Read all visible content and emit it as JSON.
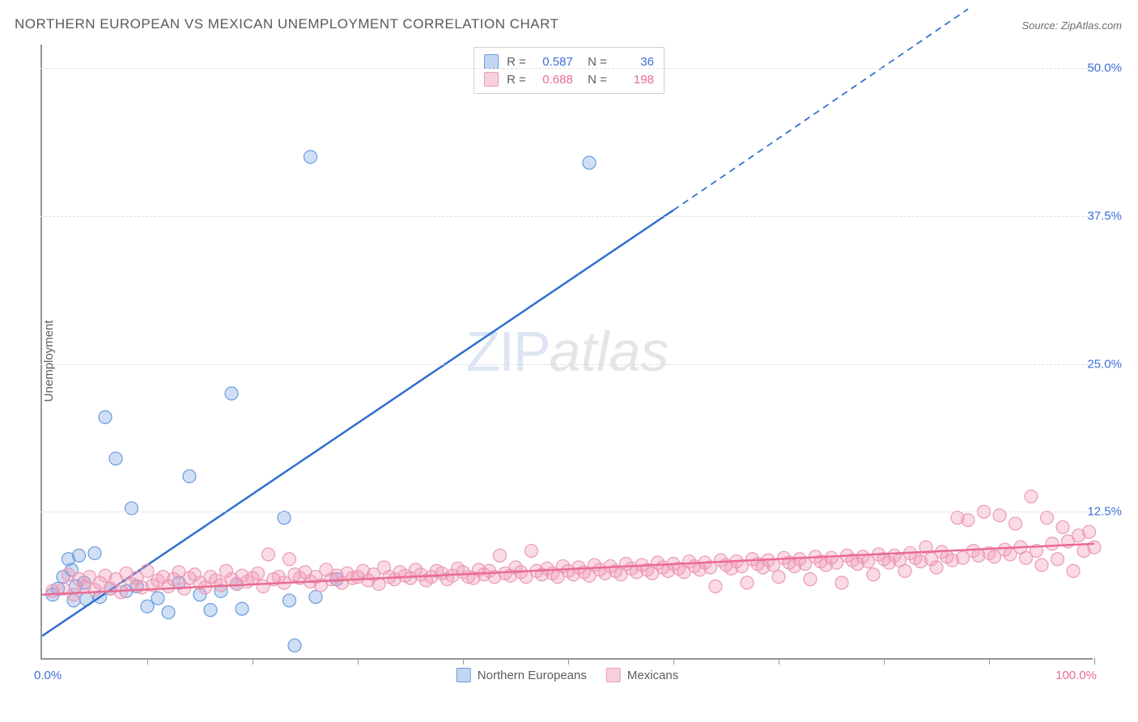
{
  "title": "NORTHERN EUROPEAN VS MEXICAN UNEMPLOYMENT CORRELATION CHART",
  "source_label": "Source: ZipAtlas.com",
  "ylabel": "Unemployment",
  "watermark_zip": "ZIP",
  "watermark_atlas": "atlas",
  "chart": {
    "type": "scatter",
    "xlim": [
      0,
      100
    ],
    "ylim": [
      0,
      52
    ],
    "x_tick_positions": [
      10,
      20,
      30,
      40,
      50,
      60,
      70,
      80,
      90,
      100
    ],
    "x_axis_left_label": "0.0%",
    "x_axis_right_label": "100.0%",
    "y_ticks": [
      {
        "value": 12.5,
        "label": "12.5%"
      },
      {
        "value": 25.0,
        "label": "25.0%"
      },
      {
        "value": 37.5,
        "label": "37.5%"
      },
      {
        "value": 50.0,
        "label": "50.0%"
      }
    ],
    "grid_color": "#dcdde0",
    "axis_color": "#94969a",
    "background_color": "#ffffff",
    "marker_radius": 8,
    "marker_stroke_width": 1.2,
    "trend_line_width": 2.5,
    "series": [
      {
        "name": "Northern Europeans",
        "fill_color": "rgba(119,163,226,0.35)",
        "stroke_color": "#6a9be0",
        "line_color": "#2f6fd0",
        "label_color": "#3b6fd6",
        "correlation_R": "0.587",
        "correlation_N": "36",
        "trend": {
          "x1": 0,
          "y1": 2.0,
          "x2": 60,
          "y2": 38.0,
          "dash_from_x": 60,
          "dash_to_x": 88,
          "dash_to_y": 55.0
        },
        "points": [
          [
            1,
            5.5
          ],
          [
            1.5,
            6
          ],
          [
            2,
            7
          ],
          [
            2.5,
            8.5
          ],
          [
            3,
            5
          ],
          [
            3.2,
            6.2
          ],
          [
            3.5,
            8.8
          ],
          [
            4,
            6.5
          ],
          [
            5,
            9
          ],
          [
            5.5,
            5.3
          ],
          [
            6,
            20.5
          ],
          [
            6.5,
            6
          ],
          [
            7,
            17
          ],
          [
            8,
            5.8
          ],
          [
            8.5,
            12.8
          ],
          [
            9,
            6.2
          ],
          [
            10,
            4.5
          ],
          [
            11,
            5.2
          ],
          [
            12,
            4
          ],
          [
            13,
            6.5
          ],
          [
            14,
            15.5
          ],
          [
            15,
            5.5
          ],
          [
            16,
            4.2
          ],
          [
            17,
            5.8
          ],
          [
            18,
            22.5
          ],
          [
            18.5,
            6.4
          ],
          [
            19,
            4.3
          ],
          [
            23,
            12
          ],
          [
            23.5,
            5
          ],
          [
            24,
            1.2
          ],
          [
            25.5,
            42.5
          ],
          [
            26,
            5.3
          ],
          [
            28,
            6.8
          ],
          [
            52,
            42
          ],
          [
            4.2,
            5.1
          ],
          [
            2.8,
            7.6
          ]
        ]
      },
      {
        "name": "Mexicans",
        "fill_color": "rgba(240,150,180,0.35)",
        "stroke_color": "#ea9bb4",
        "line_color": "#ea6b90",
        "label_color": "#ea6b90",
        "correlation_R": "0.688",
        "correlation_N": "198",
        "trend": {
          "x1": 0,
          "y1": 5.5,
          "x2": 100,
          "y2": 9.8
        },
        "points": [
          [
            1,
            5.8
          ],
          [
            2,
            6.0
          ],
          [
            2.5,
            7.2
          ],
          [
            3,
            5.5
          ],
          [
            3.5,
            6.8
          ],
          [
            4,
            6.2
          ],
          [
            4.5,
            7.0
          ],
          [
            5,
            5.9
          ],
          [
            5.5,
            6.5
          ],
          [
            6,
            7.1
          ],
          [
            6.5,
            6.0
          ],
          [
            7,
            6.8
          ],
          [
            7.5,
            5.7
          ],
          [
            8,
            7.3
          ],
          [
            8.5,
            6.4
          ],
          [
            9,
            6.9
          ],
          [
            9.5,
            6.1
          ],
          [
            10,
            7.5
          ],
          [
            10.5,
            6.3
          ],
          [
            11,
            6.7
          ],
          [
            11.5,
            7.0
          ],
          [
            12,
            6.2
          ],
          [
            12.5,
            6.8
          ],
          [
            13,
            7.4
          ],
          [
            13.5,
            6.0
          ],
          [
            14,
            6.9
          ],
          [
            14.5,
            7.2
          ],
          [
            15,
            6.5
          ],
          [
            15.5,
            6.1
          ],
          [
            16,
            7.0
          ],
          [
            16.5,
            6.7
          ],
          [
            17,
            6.3
          ],
          [
            17.5,
            7.5
          ],
          [
            18,
            6.8
          ],
          [
            18.5,
            6.4
          ],
          [
            19,
            7.1
          ],
          [
            19.5,
            6.6
          ],
          [
            20,
            6.9
          ],
          [
            20.5,
            7.3
          ],
          [
            21,
            6.2
          ],
          [
            21.5,
            8.9
          ],
          [
            22,
            6.8
          ],
          [
            22.5,
            7.0
          ],
          [
            23,
            6.5
          ],
          [
            23.5,
            8.5
          ],
          [
            24,
            7.2
          ],
          [
            24.5,
            6.9
          ],
          [
            25,
            7.4
          ],
          [
            25.5,
            6.6
          ],
          [
            26,
            7.0
          ],
          [
            26.5,
            6.3
          ],
          [
            27,
            7.6
          ],
          [
            27.5,
            6.8
          ],
          [
            28,
            7.1
          ],
          [
            28.5,
            6.5
          ],
          [
            29,
            7.3
          ],
          [
            29.5,
            6.9
          ],
          [
            30,
            7.0
          ],
          [
            30.5,
            7.5
          ],
          [
            31,
            6.7
          ],
          [
            31.5,
            7.2
          ],
          [
            32,
            6.4
          ],
          [
            32.5,
            7.8
          ],
          [
            33,
            7.0
          ],
          [
            33.5,
            6.8
          ],
          [
            34,
            7.4
          ],
          [
            34.5,
            7.1
          ],
          [
            35,
            6.9
          ],
          [
            35.5,
            7.6
          ],
          [
            36,
            7.2
          ],
          [
            36.5,
            6.7
          ],
          [
            37,
            7.0
          ],
          [
            37.5,
            7.5
          ],
          [
            38,
            7.3
          ],
          [
            38.5,
            6.8
          ],
          [
            39,
            7.1
          ],
          [
            39.5,
            7.7
          ],
          [
            40,
            7.4
          ],
          [
            40.5,
            7.0
          ],
          [
            41,
            6.9
          ],
          [
            41.5,
            7.6
          ],
          [
            42,
            7.2
          ],
          [
            42.5,
            7.5
          ],
          [
            43,
            7.0
          ],
          [
            43.5,
            8.8
          ],
          [
            44,
            7.3
          ],
          [
            44.5,
            7.1
          ],
          [
            45,
            7.8
          ],
          [
            45.5,
            7.4
          ],
          [
            46,
            7.0
          ],
          [
            46.5,
            9.2
          ],
          [
            47,
            7.5
          ],
          [
            47.5,
            7.2
          ],
          [
            48,
            7.7
          ],
          [
            48.5,
            7.3
          ],
          [
            49,
            7.0
          ],
          [
            49.5,
            7.9
          ],
          [
            50,
            7.5
          ],
          [
            50.5,
            7.2
          ],
          [
            51,
            7.8
          ],
          [
            51.5,
            7.4
          ],
          [
            52,
            7.1
          ],
          [
            52.5,
            8.0
          ],
          [
            53,
            7.6
          ],
          [
            53.5,
            7.3
          ],
          [
            54,
            7.9
          ],
          [
            54.5,
            7.5
          ],
          [
            55,
            7.2
          ],
          [
            55.5,
            8.1
          ],
          [
            56,
            7.7
          ],
          [
            56.5,
            7.4
          ],
          [
            57,
            8.0
          ],
          [
            57.5,
            7.6
          ],
          [
            58,
            7.3
          ],
          [
            58.5,
            8.2
          ],
          [
            59,
            7.8
          ],
          [
            59.5,
            7.5
          ],
          [
            60,
            8.1
          ],
          [
            60.5,
            7.7
          ],
          [
            61,
            7.4
          ],
          [
            61.5,
            8.3
          ],
          [
            62,
            7.9
          ],
          [
            62.5,
            7.6
          ],
          [
            63,
            8.2
          ],
          [
            63.5,
            7.8
          ],
          [
            64,
            6.2
          ],
          [
            64.5,
            8.4
          ],
          [
            65,
            8.0
          ],
          [
            65.5,
            7.7
          ],
          [
            66,
            8.3
          ],
          [
            66.5,
            7.9
          ],
          [
            67,
            6.5
          ],
          [
            67.5,
            8.5
          ],
          [
            68,
            8.1
          ],
          [
            68.5,
            7.8
          ],
          [
            69,
            8.4
          ],
          [
            69.5,
            8.0
          ],
          [
            70,
            7.0
          ],
          [
            70.5,
            8.6
          ],
          [
            71,
            8.2
          ],
          [
            71.5,
            7.9
          ],
          [
            72,
            8.5
          ],
          [
            72.5,
            8.1
          ],
          [
            73,
            6.8
          ],
          [
            73.5,
            8.7
          ],
          [
            74,
            8.3
          ],
          [
            74.5,
            8.0
          ],
          [
            75,
            8.6
          ],
          [
            75.5,
            8.2
          ],
          [
            76,
            6.5
          ],
          [
            76.5,
            8.8
          ],
          [
            77,
            8.4
          ],
          [
            77.5,
            8.1
          ],
          [
            78,
            8.7
          ],
          [
            78.5,
            8.3
          ],
          [
            79,
            7.2
          ],
          [
            79.5,
            8.9
          ],
          [
            80,
            8.5
          ],
          [
            80.5,
            8.2
          ],
          [
            81,
            8.8
          ],
          [
            81.5,
            8.4
          ],
          [
            82,
            7.5
          ],
          [
            82.5,
            9.0
          ],
          [
            83,
            8.6
          ],
          [
            83.5,
            8.3
          ],
          [
            84,
            9.5
          ],
          [
            84.5,
            8.5
          ],
          [
            85,
            7.8
          ],
          [
            85.5,
            9.1
          ],
          [
            86,
            8.7
          ],
          [
            86.5,
            8.4
          ],
          [
            87,
            12.0
          ],
          [
            87.5,
            8.6
          ],
          [
            88,
            11.8
          ],
          [
            88.5,
            9.2
          ],
          [
            89,
            8.8
          ],
          [
            89.5,
            12.5
          ],
          [
            90,
            9.0
          ],
          [
            90.5,
            8.7
          ],
          [
            91,
            12.2
          ],
          [
            91.5,
            9.3
          ],
          [
            92,
            8.9
          ],
          [
            92.5,
            11.5
          ],
          [
            93,
            9.5
          ],
          [
            93.5,
            8.6
          ],
          [
            94,
            13.8
          ],
          [
            94.5,
            9.2
          ],
          [
            95,
            8.0
          ],
          [
            95.5,
            12.0
          ],
          [
            96,
            9.8
          ],
          [
            96.5,
            8.5
          ],
          [
            97,
            11.2
          ],
          [
            97.5,
            10.0
          ],
          [
            98,
            7.5
          ],
          [
            98.5,
            10.5
          ],
          [
            99,
            9.2
          ],
          [
            99.5,
            10.8
          ],
          [
            100,
            9.5
          ]
        ]
      }
    ]
  },
  "legend_series": [
    {
      "swatch_fill": "rgba(119,163,226,0.45)",
      "swatch_stroke": "#6a9be0",
      "label": "Northern Europeans"
    },
    {
      "swatch_fill": "rgba(240,150,180,0.45)",
      "swatch_stroke": "#ea9bb4",
      "label": "Mexicans"
    }
  ],
  "legend_correlation_rows": [
    {
      "swatch_fill": "rgba(119,163,226,0.45)",
      "swatch_stroke": "#6a9be0",
      "color": "#3b6fd6",
      "R": "0.587",
      "N": "36"
    },
    {
      "swatch_fill": "rgba(240,150,180,0.45)",
      "swatch_stroke": "#ea9bb4",
      "color": "#ea6b90",
      "R": "0.688",
      "N": "198"
    }
  ]
}
